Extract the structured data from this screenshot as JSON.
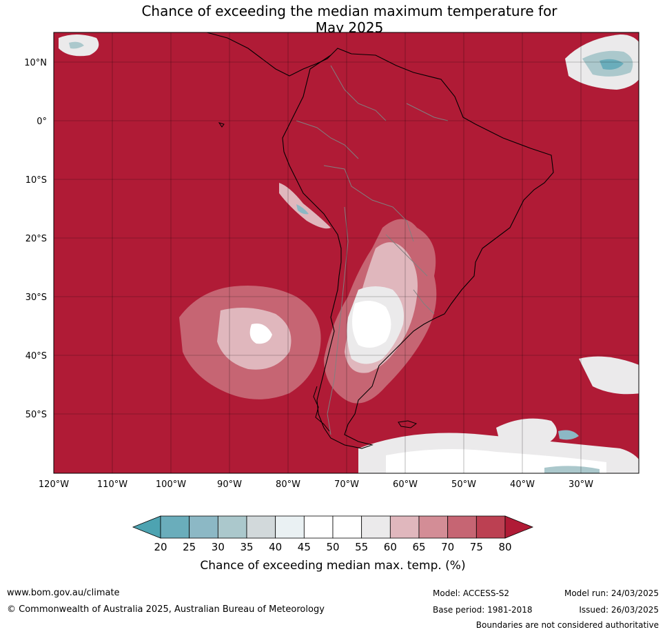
{
  "title": {
    "line1": "Chance of exceeding the median maximum temperature for",
    "line2": "May 2025"
  },
  "map": {
    "lat_labels": [
      "10°N",
      "0°",
      "10°S",
      "20°S",
      "30°S",
      "40°S",
      "50°S"
    ],
    "lon_labels": [
      "120°W",
      "110°W",
      "100°W",
      "90°W",
      "80°W",
      "70°W",
      "60°W",
      "50°W",
      "40°W",
      "30°W"
    ],
    "background_color": "#B01B36"
  },
  "colorbar": {
    "ticks": [
      "20",
      "25",
      "30",
      "35",
      "40",
      "45",
      "50",
      "55",
      "60",
      "65",
      "70",
      "75",
      "80"
    ],
    "colors": [
      "#4DA3B1",
      "#6AADBB",
      "#8CB8C5",
      "#ABC8CC",
      "#D2D9DB",
      "#EAF1F3",
      "#FFFFFF",
      "#FFFFFF",
      "#EBEAEB",
      "#E0B7BD",
      "#D38D96",
      "#C66573",
      "#BC4052",
      "#B01B36"
    ],
    "label": "Chance of exceeding median max. temp. (%)"
  },
  "footer": {
    "website": "www.bom.gov.au/climate",
    "copyright": "© Commonwealth of Australia 2025, Australian Bureau of Meteorology",
    "model": "Model: ACCESS-S2",
    "base_period": "Base period: 1981-2018",
    "model_run": "Model run: 24/03/2025",
    "issued": "Issued: 26/03/2025",
    "disclaimer": "Boundaries are not considered authoritative"
  }
}
